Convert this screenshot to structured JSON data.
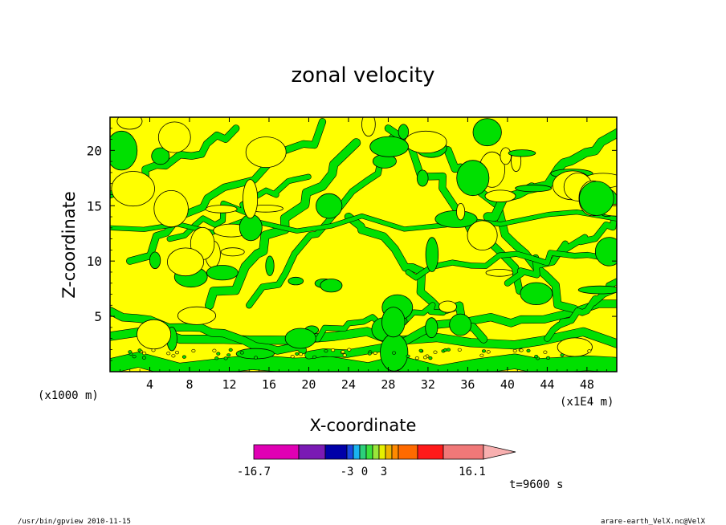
{
  "chart_data": {
    "type": "heatmap",
    "title": "zonal velocity",
    "xlabel": "X-coordinate",
    "ylabel": "Z-coordinate",
    "x_unit_left": "(x1000 m)",
    "x_unit_right": "(x1E4 m)",
    "xlim": [
      0,
      51
    ],
    "ylim": [
      0,
      23
    ],
    "x_ticks": [
      "4",
      "8",
      "12",
      "16",
      "20",
      "24",
      "28",
      "32",
      "36",
      "40",
      "44",
      "48"
    ],
    "x_tick_values": [
      4,
      8,
      12,
      16,
      20,
      24,
      28,
      32,
      36,
      40,
      44,
      48
    ],
    "y_ticks": [
      "5",
      "10",
      "15",
      "20"
    ],
    "y_tick_values": [
      5,
      10,
      15,
      20
    ],
    "colorbar": {
      "labels": [
        "-16.7",
        "-3",
        "0",
        "3",
        "16.1"
      ],
      "label_values": [
        -16.7,
        -3,
        0,
        3,
        16.1
      ],
      "colors": [
        "#e000b4",
        "#7a1ab4",
        "#0000a8",
        "#1a4ae0",
        "#1ab4f0",
        "#2cd07a",
        "#3ce23c",
        "#9ae63a",
        "#e6f000",
        "#f0b400",
        "#ff8a00",
        "#ff6a00",
        "#ff1a1a",
        "#f07878",
        "#f8b0b0"
      ]
    },
    "field_colors": {
      "negative_small": "#00e000",
      "positive_small": "#ffff00",
      "contour": "#000000"
    },
    "time_label": "t=9600 s"
  },
  "footer": {
    "left": "/usr/bin/gpview  2010-11-15",
    "right": "arare-earth_VelX.nc@VelX"
  }
}
